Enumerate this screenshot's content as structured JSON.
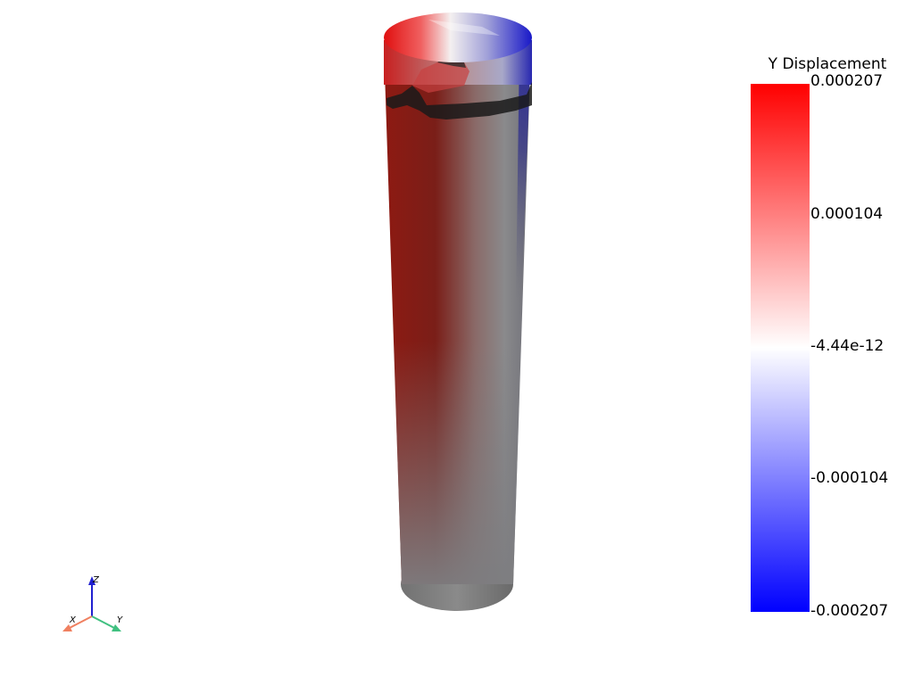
{
  "legend": {
    "title": "Y Displacement",
    "ticks": [
      "0.000207",
      "0.000104",
      "-4.44e-12",
      "-0.000104",
      "-0.000207"
    ],
    "range": [
      -0.000207,
      0.000207
    ],
    "colormap": [
      "#0000ff",
      "#ffffff",
      "#ff0000"
    ]
  },
  "orientation_axes": {
    "x_label": "X",
    "y_label": "Y",
    "z_label": "Z",
    "x_color": "#f08060",
    "y_color": "#40c080",
    "z_color": "#2020d0"
  }
}
